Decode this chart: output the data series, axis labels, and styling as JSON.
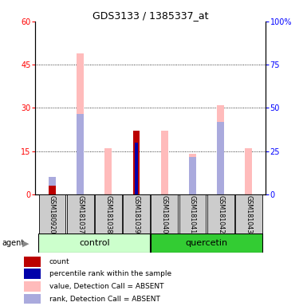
{
  "title": "GDS3133 / 1385337_at",
  "samples": [
    "GSM180920",
    "GSM181037",
    "GSM181038",
    "GSM181039",
    "GSM181040",
    "GSM181041",
    "GSM181042",
    "GSM181043"
  ],
  "count_values": [
    3,
    0,
    0,
    22,
    0,
    0,
    0,
    0
  ],
  "percentile_values": [
    0,
    0,
    0,
    18,
    0,
    0,
    0,
    0
  ],
  "absent_value_values": [
    3,
    49,
    16,
    0,
    22,
    14,
    31,
    16
  ],
  "absent_rank_values": [
    6,
    28,
    0,
    0,
    0,
    0,
    25,
    0
  ],
  "absent_rank_only_values": [
    0,
    0,
    0,
    0,
    0,
    13,
    0,
    0
  ],
  "ylim_left": [
    0,
    60
  ],
  "ylim_right": [
    0,
    100
  ],
  "yticks_left": [
    0,
    15,
    30,
    45,
    60
  ],
  "yticks_right": [
    0,
    25,
    50,
    75,
    100
  ],
  "ytick_right_labels": [
    "0",
    "25",
    "50",
    "75",
    "100%"
  ],
  "color_count": "#bb0000",
  "color_percentile": "#0000aa",
  "color_absent_value": "#ffbbbb",
  "color_absent_rank": "#aaaadd",
  "color_control_bg_light": "#ccffcc",
  "color_quercetin_bg": "#33cc33",
  "color_sample_bg": "#cccccc",
  "bar_width": 0.25,
  "legend_items": [
    {
      "label": "count",
      "color": "#bb0000"
    },
    {
      "label": "percentile rank within the sample",
      "color": "#0000aa"
    },
    {
      "label": "value, Detection Call = ABSENT",
      "color": "#ffbbbb"
    },
    {
      "label": "rank, Detection Call = ABSENT",
      "color": "#aaaadd"
    }
  ],
  "n_samples": 8,
  "n_control": 4,
  "n_quercetin": 4
}
